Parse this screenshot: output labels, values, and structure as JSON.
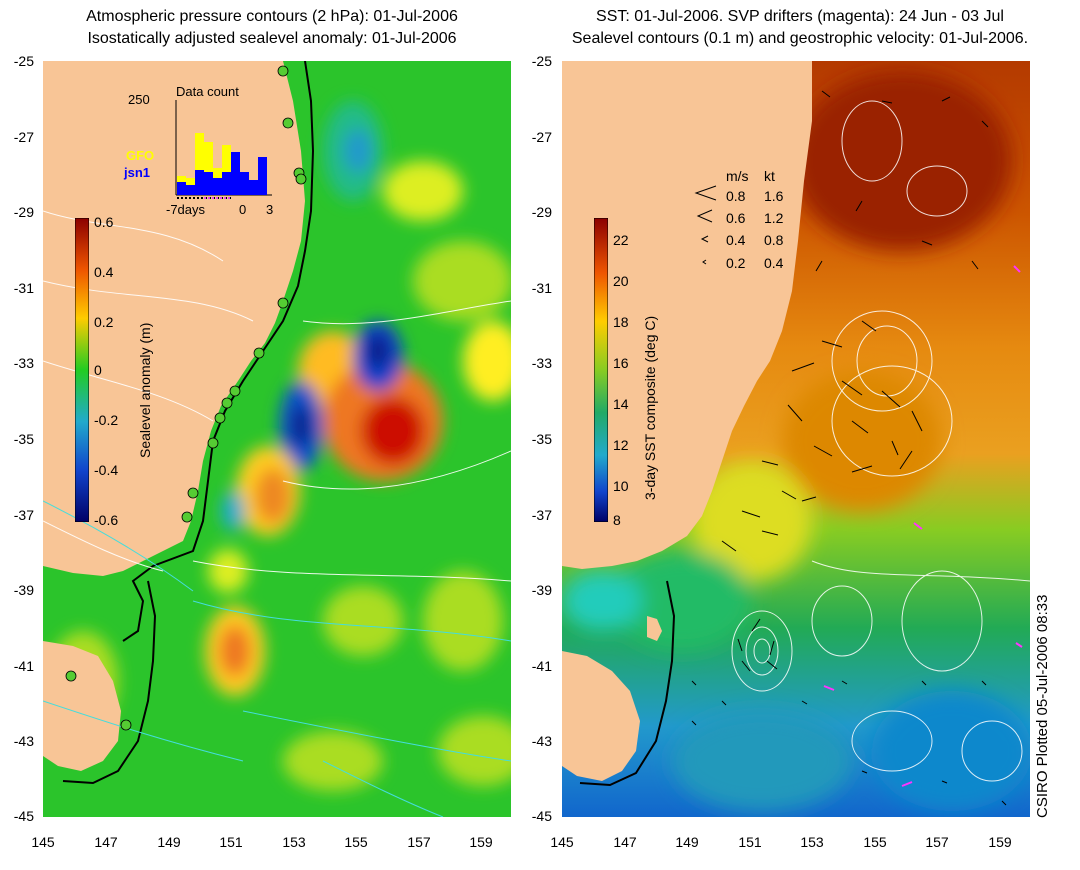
{
  "left_panel": {
    "title_line1": "Atmospheric pressure contours (2 hPa): 01-Jul-2006",
    "title_line2": "Isostatically adjusted sealevel anomaly: 01-Jul-2006",
    "colorbar_label": "Sealevel anomaly (m)",
    "colorbar_ticks": [
      "0.6",
      "0.4",
      "0.2",
      "0",
      "-0.2",
      "-0.4",
      "-0.6"
    ],
    "inset": {
      "title": "Data count",
      "ymax_label": "250",
      "series": [
        {
          "name": "GFO",
          "color": "#ffff00"
        },
        {
          "name": "jsn1",
          "color": "#0000ff"
        }
      ],
      "x_labels": [
        "-7days",
        "0",
        "3"
      ]
    }
  },
  "right_panel": {
    "title_line1": "SST: 01-Jul-2006. SVP drifters (magenta): 24 Jun - 03 Jul",
    "title_line2": "Sealevel contours (0.1 m) and geostrophic velocity: 01-Jul-2006.",
    "colorbar_label": "3-day SST composite (deg C)",
    "colorbar_ticks": [
      "22",
      "20",
      "18",
      "16",
      "14",
      "12",
      "10",
      "8"
    ],
    "velocity_legend": {
      "header_ms": "m/s",
      "header_kt": "kt",
      "rows": [
        {
          "ms": "0.8",
          "kt": "1.6"
        },
        {
          "ms": "0.6",
          "kt": "1.2"
        },
        {
          "ms": "0.4",
          "kt": "0.8"
        },
        {
          "ms": "0.2",
          "kt": "0.4"
        }
      ]
    }
  },
  "axes": {
    "y_ticks": [
      "-25",
      "-27",
      "-29",
      "-31",
      "-33",
      "-35",
      "-37",
      "-39",
      "-41",
      "-43",
      "-45"
    ],
    "x_ticks": [
      "145",
      "147",
      "149",
      "151",
      "153",
      "155",
      "157",
      "159"
    ]
  },
  "footer": "CSIRO Plotted 05-Jul-2006 08:33",
  "colors": {
    "land": "#f8c596",
    "ocean_green": "#33cc33",
    "high_anomaly": "#cc0000",
    "low_anomaly": "#0033cc",
    "sst_warm": "#aa2200",
    "sst_cool": "#22aacc"
  }
}
